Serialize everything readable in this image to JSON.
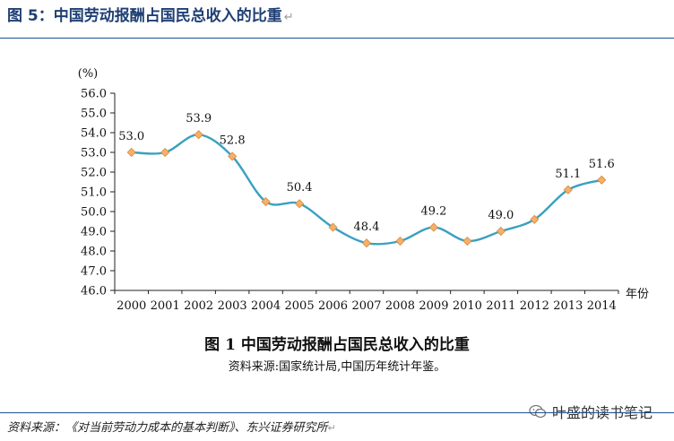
{
  "header": {
    "title": "图 5：中国劳动报酬占国民总收入的比重",
    "mark": "↵"
  },
  "chart_data": {
    "type": "line",
    "title": "图 1 中国劳动报酬占国民总收入的比重",
    "source": "资料来源:国家统计局,中国历年统计年鉴。",
    "ylabel": "(%)",
    "xlabel": "年份",
    "ylim": [
      46.0,
      56.0
    ],
    "ytick_step": 1.0,
    "x": [
      "2000",
      "2001",
      "2002",
      "2003",
      "2004",
      "2005",
      "2006",
      "2007",
      "2008",
      "2009",
      "2010",
      "2011",
      "2012",
      "2013",
      "2014"
    ],
    "values": [
      53.0,
      53.0,
      53.9,
      52.8,
      50.5,
      50.4,
      49.2,
      48.4,
      48.5,
      49.2,
      48.5,
      49.0,
      49.6,
      51.1,
      51.6
    ],
    "labels": [
      {
        "index": 0,
        "text": "53.0"
      },
      {
        "index": 2,
        "text": "53.9"
      },
      {
        "index": 3,
        "text": "52.8"
      },
      {
        "index": 5,
        "text": "50.4"
      },
      {
        "index": 7,
        "text": "48.4"
      },
      {
        "index": 9,
        "text": "49.2"
      },
      {
        "index": 11,
        "text": "49.0"
      },
      {
        "index": 13,
        "text": "51.1"
      },
      {
        "index": 14,
        "text": "51.6"
      }
    ],
    "line_color": "#3aa0c0",
    "marker_color": "#f5b06a"
  },
  "watermark": {
    "text": "叶盛的读书笔记"
  },
  "footer": {
    "text": "资料来源：《对当前劳动力成本的基本判断》、东兴证券研究所",
    "mark": "↵"
  }
}
